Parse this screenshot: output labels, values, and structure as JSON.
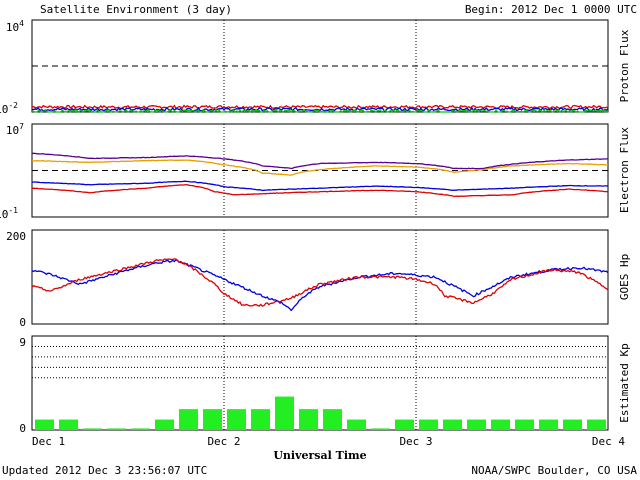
{
  "header": {
    "title": "Satellite Environment (3 day)",
    "begin": "Begin:  2012 Dec 1 0000 UTC"
  },
  "footer": {
    "updated": "Updated 2012 Dec  3 23:56:07 UTC",
    "source": "NOAA/SWPC Boulder, CO USA"
  },
  "xaxis": {
    "title": "Universal Time",
    "ticks": [
      "Dec 1",
      "Dec 2",
      "Dec 3",
      "Dec 4"
    ],
    "range_days": [
      0,
      3
    ]
  },
  "colors": {
    "red": "#e00000",
    "blue": "#0000e0",
    "green": "#00cc00",
    "purple": "#5a0099",
    "orange": "#e8a000",
    "bar": "#22ee22",
    "dashed": "#000000"
  },
  "chart_data": [
    {
      "type": "line",
      "ylabel": "Proton Flux",
      "yscale": "log",
      "ylim": [
        0.01,
        10000
      ],
      "ytick_labels": {
        "top": "10",
        "top_exp": "4",
        "bottom": "10",
        "bottom_exp": "-2"
      },
      "threshold": 10,
      "series": [
        {
          "color": "red",
          "x": [
            0,
            0.5,
            1,
            1.5,
            2,
            2.5,
            3
          ],
          "y": [
            0.022,
            0.021,
            0.022,
            0.021,
            0.022,
            0.021,
            0.022
          ]
        },
        {
          "color": "blue",
          "x": [
            0,
            0.5,
            1,
            1.5,
            2,
            2.5,
            3
          ],
          "y": [
            0.015,
            0.015,
            0.015,
            0.015,
            0.015,
            0.015,
            0.015
          ]
        },
        {
          "color": "green",
          "x": [
            0,
            0.5,
            1,
            1.5,
            2,
            2.5,
            3
          ],
          "y": [
            0.011,
            0.011,
            0.011,
            0.011,
            0.011,
            0.011,
            0.011
          ]
        }
      ]
    },
    {
      "type": "line",
      "ylabel": "Electron Flux",
      "yscale": "log",
      "ylim": [
        0.1,
        10000000
      ],
      "ytick_labels": {
        "top": "10",
        "top_exp": "7",
        "bottom": "10",
        "bottom_exp": "-1"
      },
      "threshold": 1000,
      "series": [
        {
          "color": "purple",
          "x": [
            0,
            0.3,
            0.6,
            0.8,
            1.0,
            1.2,
            1.35,
            1.5,
            1.8,
            2.0,
            2.2,
            2.35,
            2.5,
            2.8,
            3.0
          ],
          "y": [
            30000,
            11000,
            13000,
            18000,
            10000,
            2500,
            1500,
            4000,
            5000,
            4000,
            1500,
            1500,
            3500,
            8000,
            10000
          ]
        },
        {
          "color": "orange",
          "x": [
            0,
            0.3,
            0.6,
            0.8,
            1.0,
            1.2,
            1.35,
            1.5,
            1.8,
            2.0,
            2.2,
            2.35,
            2.5,
            2.8,
            3.0
          ],
          "y": [
            7000,
            5000,
            7000,
            8000,
            3000,
            600,
            400,
            1200,
            2500,
            2000,
            700,
            1200,
            2500,
            4000,
            3000
          ]
        },
        {
          "color": "blue",
          "x": [
            0,
            0.3,
            0.6,
            0.8,
            1.0,
            1.2,
            1.5,
            1.8,
            2.0,
            2.2,
            2.5,
            2.8,
            3.0
          ],
          "y": [
            100,
            60,
            80,
            120,
            40,
            20,
            30,
            45,
            35,
            20,
            30,
            50,
            45
          ]
        },
        {
          "color": "red",
          "x": [
            0,
            0.3,
            0.6,
            0.8,
            0.95,
            1.05,
            1.2,
            1.5,
            1.8,
            2.0,
            2.2,
            2.5,
            2.8,
            3.0
          ],
          "y": [
            30,
            12,
            30,
            60,
            15,
            8,
            10,
            15,
            20,
            15,
            6,
            8,
            25,
            15
          ]
        }
      ]
    },
    {
      "type": "line",
      "ylabel": "GOES Hp",
      "yscale": "linear",
      "ylim": [
        0,
        200
      ],
      "ytick_labels": [
        "0",
        "200"
      ],
      "series": [
        {
          "color": "blue",
          "x": [
            0,
            0.1,
            0.25,
            0.5,
            0.65,
            0.75,
            0.85,
            1.0,
            1.2,
            1.3,
            1.35,
            1.42,
            1.5,
            1.7,
            1.9,
            2.1,
            2.2,
            2.3,
            2.4,
            2.5,
            2.7,
            2.85,
            3.0
          ],
          "y": [
            115,
            105,
            85,
            115,
            130,
            135,
            120,
            95,
            60,
            45,
            30,
            60,
            80,
            100,
            108,
            100,
            80,
            60,
            80,
            100,
            115,
            120,
            110
          ]
        },
        {
          "color": "red",
          "x": [
            0,
            0.1,
            0.25,
            0.5,
            0.65,
            0.75,
            0.85,
            0.95,
            1.0,
            1.1,
            1.2,
            1.35,
            1.42,
            1.5,
            1.7,
            1.9,
            2.0,
            2.1,
            2.15,
            2.3,
            2.4,
            2.5,
            2.7,
            2.85,
            3.0
          ],
          "y": [
            80,
            70,
            95,
            120,
            135,
            138,
            115,
            85,
            65,
            40,
            40,
            55,
            70,
            85,
            100,
            100,
            95,
            85,
            60,
            45,
            65,
            95,
            115,
            110,
            75
          ]
        }
      ]
    },
    {
      "type": "bar",
      "ylabel": "Estimated Kp",
      "ylim": [
        0,
        9
      ],
      "ytick_labels": [
        "0",
        "9"
      ],
      "gridlines": [
        5,
        6,
        7,
        8,
        9
      ],
      "bar_width_hours": 3,
      "values": [
        1,
        1,
        0.15,
        0.15,
        0.15,
        1,
        2,
        2,
        2,
        2,
        3.2,
        2,
        2,
        1,
        0.15,
        1,
        1,
        1,
        1,
        1,
        1,
        1,
        1,
        1
      ]
    }
  ]
}
